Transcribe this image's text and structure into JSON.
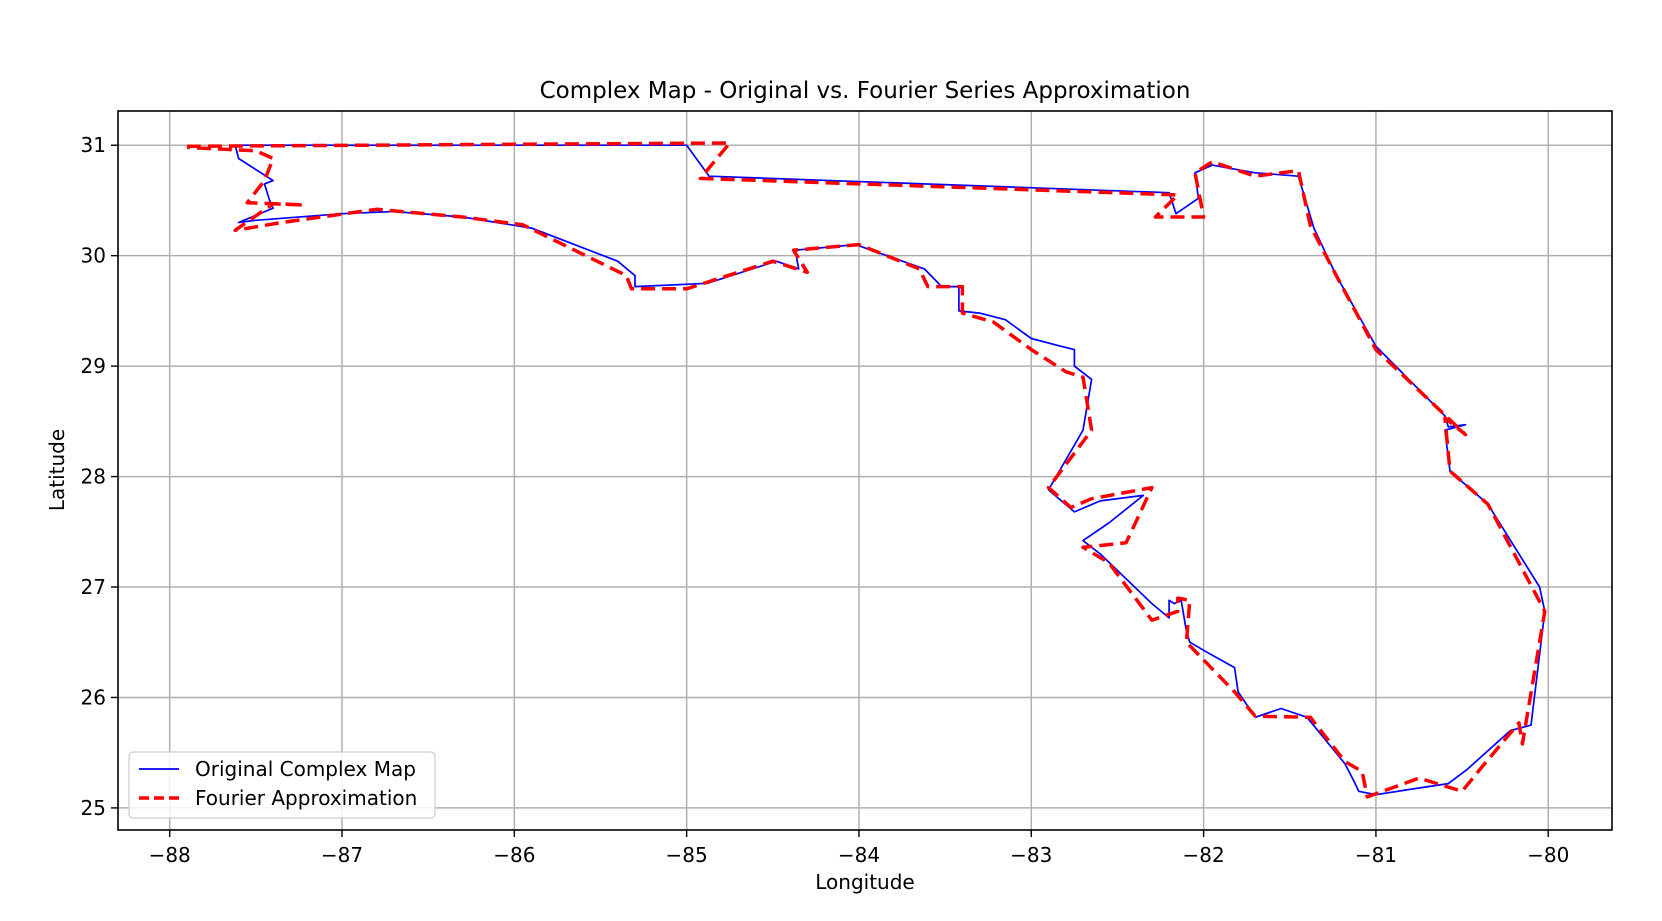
{
  "chart_data": {
    "type": "line",
    "title": "Complex Map - Original vs. Fourier Series Approximation",
    "xlabel": "Longitude",
    "ylabel": "Latitude",
    "xlim": [
      -88.3,
      -79.63
    ],
    "ylim": [
      24.8,
      31.31
    ],
    "xticks": [
      -88,
      -87,
      -86,
      -85,
      -84,
      -83,
      -82,
      -81,
      -80
    ],
    "xtick_labels": [
      "−88",
      "−87",
      "−86",
      "−85",
      "−84",
      "−83",
      "−82",
      "−81",
      "−80"
    ],
    "yticks": [
      25,
      26,
      27,
      28,
      29,
      30,
      31
    ],
    "ytick_labels": [
      "25",
      "26",
      "27",
      "28",
      "29",
      "30",
      "31"
    ],
    "grid": true,
    "legend_position": "lower-left",
    "series": [
      {
        "name": "Original Complex Map",
        "color": "#0000ff",
        "style": "solid",
        "x": [
          -87.62,
          -85.0,
          -84.87,
          -82.2,
          -82.16,
          -82.03,
          -82.05,
          -81.95,
          -81.88,
          -81.7,
          -81.45,
          -81.36,
          -81.23,
          -81.0,
          -80.6,
          -80.58,
          -80.48,
          -80.6,
          -80.57,
          -80.35,
          -80.05,
          -80.02,
          -80.1,
          -80.22,
          -80.47,
          -80.58,
          -80.75,
          -81.0,
          -81.1,
          -81.13,
          -81.18,
          -81.4,
          -81.55,
          -81.7,
          -81.8,
          -81.82,
          -81.97,
          -82.08,
          -82.1,
          -82.13,
          -82.17,
          -82.2,
          -82.2,
          -82.3,
          -82.6,
          -82.7,
          -82.55,
          -82.35,
          -82.6,
          -82.75,
          -82.9,
          -82.7,
          -82.65,
          -82.75,
          -82.75,
          -82.83,
          -83.0,
          -83.15,
          -83.3,
          -83.42,
          -83.42,
          -83.52,
          -83.62,
          -84.02,
          -84.37,
          -84.35,
          -84.48,
          -84.88,
          -85.3,
          -85.3,
          -85.4,
          -85.9,
          -86.3,
          -86.7,
          -87.0,
          -87.5,
          -87.6,
          -87.4,
          -87.42,
          -87.45,
          -87.4,
          -87.6,
          -87.62
        ],
        "y": [
          31.0,
          31.0,
          30.72,
          30.57,
          30.38,
          30.52,
          30.75,
          30.82,
          30.8,
          30.75,
          30.72,
          30.25,
          29.82,
          29.18,
          28.55,
          28.45,
          28.47,
          28.42,
          28.05,
          27.75,
          27.0,
          26.78,
          25.75,
          25.7,
          25.35,
          25.22,
          25.18,
          25.12,
          25.15,
          25.25,
          25.4,
          25.82,
          25.9,
          25.82,
          26.05,
          26.27,
          26.4,
          26.5,
          26.6,
          26.88,
          26.85,
          26.88,
          26.72,
          26.85,
          27.3,
          27.42,
          27.58,
          27.83,
          27.78,
          27.68,
          27.88,
          28.42,
          28.88,
          29.0,
          29.15,
          29.18,
          29.25,
          29.42,
          29.48,
          29.5,
          29.72,
          29.72,
          29.88,
          30.1,
          30.05,
          29.88,
          29.95,
          29.75,
          29.72,
          29.82,
          29.95,
          30.25,
          30.35,
          30.4,
          30.38,
          30.32,
          30.3,
          30.43,
          30.5,
          30.65,
          30.68,
          30.88,
          31.0
        ]
      },
      {
        "name": "Fourier Approximation",
        "color": "#ff0000",
        "style": "dashed",
        "x": [
          -87.9,
          -84.75,
          -84.92,
          -82.15,
          -82.28,
          -82.0,
          -82.05,
          -81.95,
          -81.7,
          -81.45,
          -81.38,
          -81.23,
          -81.0,
          -80.48,
          -80.6,
          -80.57,
          -80.35,
          -80.02,
          -80.15,
          -80.17,
          -80.38,
          -80.5,
          -80.75,
          -81.05,
          -81.08,
          -81.18,
          -81.38,
          -81.7,
          -81.82,
          -82.1,
          -82.08,
          -82.15,
          -82.15,
          -82.3,
          -82.55,
          -82.7,
          -82.45,
          -82.3,
          -82.65,
          -82.77,
          -82.9,
          -82.65,
          -82.7,
          -82.8,
          -83.0,
          -83.22,
          -83.4,
          -83.4,
          -83.6,
          -83.65,
          -84.0,
          -84.38,
          -84.3,
          -84.5,
          -85.0,
          -85.32,
          -85.35,
          -85.95,
          -86.3,
          -86.8,
          -87.35,
          -87.62,
          -87.4,
          -87.22,
          -87.55,
          -87.45,
          -87.4,
          -87.5,
          -87.9
        ],
        "y": [
          30.99,
          31.02,
          30.7,
          30.55,
          30.35,
          30.35,
          30.75,
          30.85,
          30.72,
          30.77,
          30.27,
          29.82,
          29.15,
          28.38,
          28.53,
          28.05,
          27.75,
          26.78,
          25.58,
          25.77,
          25.38,
          25.15,
          25.27,
          25.1,
          25.33,
          25.42,
          25.82,
          25.83,
          26.05,
          26.5,
          26.88,
          26.9,
          26.78,
          26.7,
          27.22,
          27.36,
          27.4,
          27.9,
          27.8,
          27.72,
          27.9,
          28.42,
          28.9,
          28.95,
          29.15,
          29.4,
          29.48,
          29.72,
          29.72,
          29.88,
          30.1,
          30.05,
          29.85,
          29.95,
          29.7,
          29.7,
          29.82,
          30.28,
          30.35,
          30.42,
          30.3,
          30.23,
          30.47,
          30.46,
          30.48,
          30.68,
          30.88,
          30.95,
          30.98
        ]
      }
    ]
  }
}
